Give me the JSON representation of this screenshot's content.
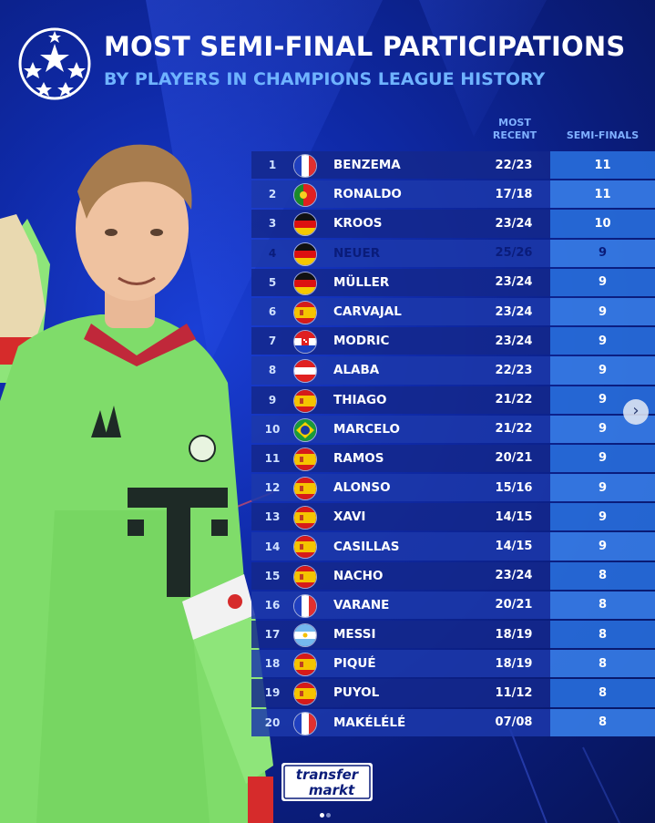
{
  "header": {
    "title": "MOST SEMI-FINAL PARTICIPATIONS",
    "subtitle": "BY PLAYERS IN CHAMPIONS LEAGUE HISTORY"
  },
  "columns": {
    "most_recent_line1": "MOST",
    "most_recent_line2": "RECENT",
    "semi_finals": "SEMI-FINALS"
  },
  "rows": [
    {
      "rank": "1",
      "flag": "france-flag",
      "name": "BENZEMA",
      "recent": "22/23",
      "semis": "11"
    },
    {
      "rank": "2",
      "flag": "portugal-flag",
      "name": "RONALDO",
      "recent": "17/18",
      "semis": "11"
    },
    {
      "rank": "3",
      "flag": "germany-flag",
      "name": "KROOS",
      "recent": "23/24",
      "semis": "10"
    },
    {
      "rank": "4",
      "flag": "germany-flag",
      "name": "NEUER",
      "recent": "25/26",
      "semis": "9"
    },
    {
      "rank": "5",
      "flag": "germany-flag",
      "name": "MÜLLER",
      "recent": "23/24",
      "semis": "9"
    },
    {
      "rank": "6",
      "flag": "spain-flag",
      "name": "CARVAJAL",
      "recent": "23/24",
      "semis": "9"
    },
    {
      "rank": "7",
      "flag": "croatia-flag",
      "name": "MODRIC",
      "recent": "23/24",
      "semis": "9"
    },
    {
      "rank": "8",
      "flag": "austria-flag",
      "name": "ALABA",
      "recent": "22/23",
      "semis": "9"
    },
    {
      "rank": "9",
      "flag": "spain-flag",
      "name": "THIAGO",
      "recent": "21/22",
      "semis": "9"
    },
    {
      "rank": "10",
      "flag": "brazil-flag",
      "name": "MARCELO",
      "recent": "21/22",
      "semis": "9"
    },
    {
      "rank": "11",
      "flag": "spain-flag",
      "name": "RAMOS",
      "recent": "20/21",
      "semis": "9"
    },
    {
      "rank": "12",
      "flag": "spain-flag",
      "name": "ALONSO",
      "recent": "15/16",
      "semis": "9"
    },
    {
      "rank": "13",
      "flag": "spain-flag",
      "name": "XAVI",
      "recent": "14/15",
      "semis": "9"
    },
    {
      "rank": "14",
      "flag": "spain-flag",
      "name": "CASILLAS",
      "recent": "14/15",
      "semis": "9"
    },
    {
      "rank": "15",
      "flag": "spain-flag",
      "name": "NACHO",
      "recent": "23/24",
      "semis": "8"
    },
    {
      "rank": "16",
      "flag": "france-flag",
      "name": "VARANE",
      "recent": "20/21",
      "semis": "8"
    },
    {
      "rank": "17",
      "flag": "argentina-flag",
      "name": "MESSI",
      "recent": "18/19",
      "semis": "8"
    },
    {
      "rank": "18",
      "flag": "spain-flag",
      "name": "PIQUÉ",
      "recent": "18/19",
      "semis": "8"
    },
    {
      "rank": "19",
      "flag": "spain-flag",
      "name": "PUYOL",
      "recent": "11/12",
      "semis": "8"
    },
    {
      "rank": "20",
      "flag": "france-flag",
      "name": "MAKÉLÉLÉ",
      "recent": "07/08",
      "semis": "8"
    }
  ],
  "highlight_rank": "4",
  "brand": {
    "line1": "transfer",
    "line2": "markt"
  },
  "carousel": {
    "next_icon": "chevron-right-icon",
    "pages": 2,
    "active_page": 1
  },
  "colors": {
    "accent_text": "#6fb3ff",
    "highlight_row": "#d9e8ff",
    "bg_dark": "#0a1c7a"
  }
}
